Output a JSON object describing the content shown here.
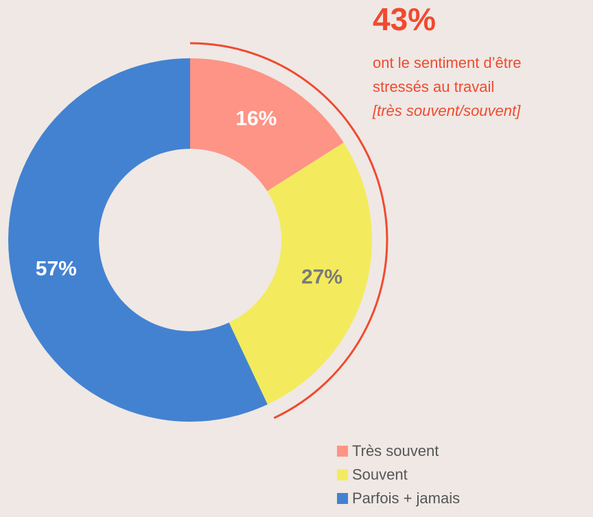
{
  "chart_data": {
    "type": "pie",
    "categories": [
      "Très souvent",
      "Souvent",
      "Parfois + jamais"
    ],
    "values": [
      16,
      27,
      57
    ],
    "value_labels": [
      "16%",
      "27%",
      "57%"
    ],
    "colors": [
      "#fd9486",
      "#f3eb5d",
      "#4382d1"
    ],
    "label_colors": [
      "#ffffff",
      "#7a7a7a",
      "#ffffff"
    ],
    "donut": true,
    "annotation": {
      "value": "43%",
      "lines": [
        "ont le sentiment d’être",
        "stressés au travail"
      ],
      "note": "[très souvent/souvent]",
      "color": "#f04a2f",
      "covers": [
        0,
        1
      ]
    },
    "legend": "bottom-right"
  }
}
